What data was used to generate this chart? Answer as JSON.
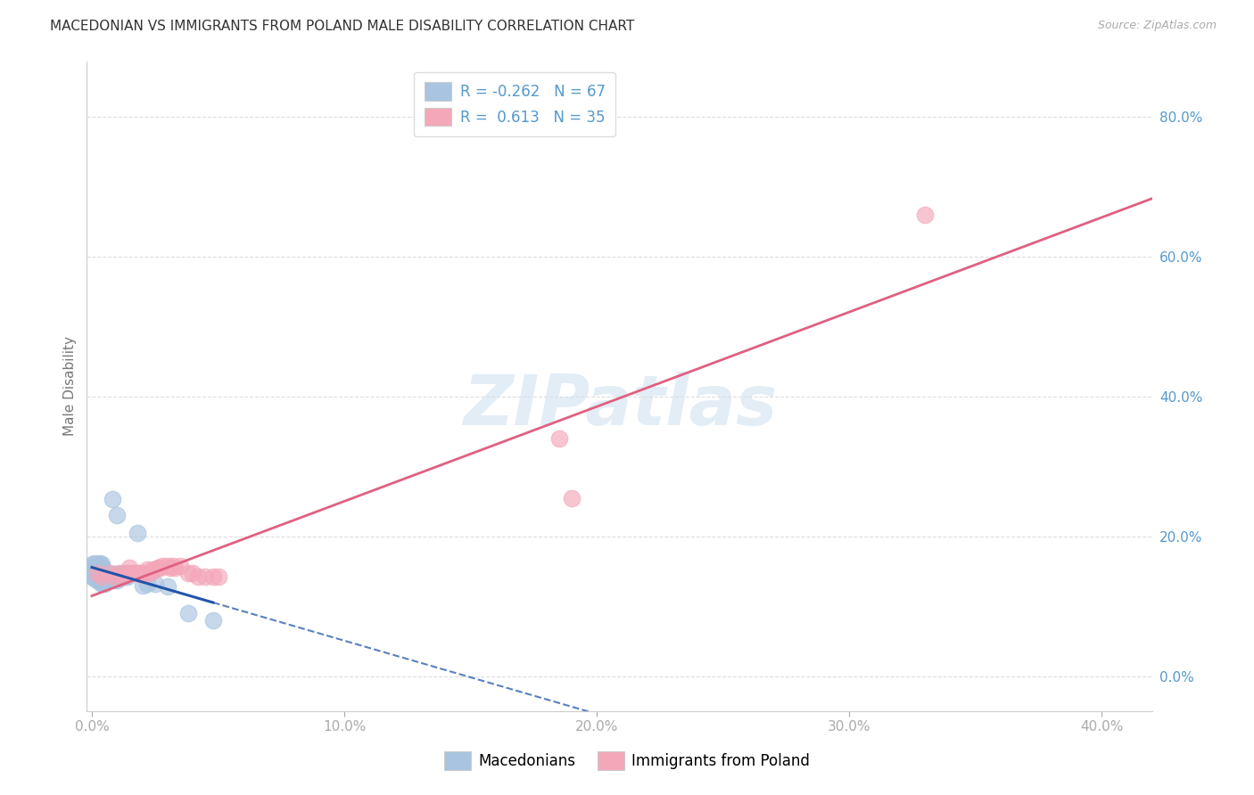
{
  "title": "MACEDONIAN VS IMMIGRANTS FROM POLAND MALE DISABILITY CORRELATION CHART",
  "source": "Source: ZipAtlas.com",
  "ylabel": "Male Disability",
  "xlim": [
    -0.002,
    0.42
  ],
  "ylim": [
    -0.05,
    0.88
  ],
  "ytick_labels": [
    "0.0%",
    "20.0%",
    "40.0%",
    "60.0%",
    "80.0%"
  ],
  "ytick_values": [
    0.0,
    0.2,
    0.4,
    0.6,
    0.8
  ],
  "xtick_labels": [
    "0.0%",
    "10.0%",
    "20.0%",
    "30.0%",
    "40.0%"
  ],
  "xtick_values": [
    0.0,
    0.1,
    0.2,
    0.3,
    0.4
  ],
  "blue_color": "#a8c4e0",
  "pink_color": "#f4a7b9",
  "blue_line_color": "#2255aa",
  "pink_line_color": "#e06080",
  "R_blue": -0.262,
  "N_blue": 67,
  "R_pink": 0.613,
  "N_pink": 35,
  "blue_scatter": [
    [
      0.0,
      0.155
    ],
    [
      0.001,
      0.155
    ],
    [
      0.001,
      0.152
    ],
    [
      0.002,
      0.15
    ],
    [
      0.002,
      0.148
    ],
    [
      0.002,
      0.155
    ],
    [
      0.003,
      0.148
    ],
    [
      0.003,
      0.145
    ],
    [
      0.004,
      0.148
    ],
    [
      0.004,
      0.15
    ],
    [
      0.005,
      0.145
    ],
    [
      0.005,
      0.148
    ],
    [
      0.006,
      0.145
    ],
    [
      0.006,
      0.148
    ],
    [
      0.007,
      0.143
    ],
    [
      0.007,
      0.146
    ],
    [
      0.008,
      0.143
    ],
    [
      0.008,
      0.146
    ],
    [
      0.009,
      0.143
    ],
    [
      0.009,
      0.146
    ],
    [
      0.01,
      0.143
    ],
    [
      0.01,
      0.146
    ],
    [
      0.011,
      0.143
    ],
    [
      0.011,
      0.146
    ],
    [
      0.012,
      0.143
    ],
    [
      0.012,
      0.146
    ],
    [
      0.013,
      0.143
    ],
    [
      0.013,
      0.148
    ],
    [
      0.014,
      0.143
    ],
    [
      0.014,
      0.148
    ],
    [
      0.0,
      0.16
    ],
    [
      0.001,
      0.158
    ],
    [
      0.001,
      0.162
    ],
    [
      0.002,
      0.158
    ],
    [
      0.002,
      0.16
    ],
    [
      0.003,
      0.158
    ],
    [
      0.003,
      0.162
    ],
    [
      0.004,
      0.158
    ],
    [
      0.004,
      0.16
    ],
    [
      0.0,
      0.152
    ],
    [
      0.001,
      0.148
    ],
    [
      0.001,
      0.145
    ],
    [
      0.002,
      0.143
    ],
    [
      0.003,
      0.14
    ],
    [
      0.004,
      0.138
    ],
    [
      0.005,
      0.14
    ],
    [
      0.006,
      0.138
    ],
    [
      0.007,
      0.138
    ],
    [
      0.008,
      0.138
    ],
    [
      0.009,
      0.14
    ],
    [
      0.01,
      0.138
    ],
    [
      0.011,
      0.14
    ],
    [
      0.0,
      0.143
    ],
    [
      0.001,
      0.14
    ],
    [
      0.002,
      0.138
    ],
    [
      0.003,
      0.135
    ],
    [
      0.004,
      0.133
    ],
    [
      0.005,
      0.133
    ],
    [
      0.02,
      0.13
    ],
    [
      0.022,
      0.133
    ],
    [
      0.025,
      0.133
    ],
    [
      0.03,
      0.128
    ],
    [
      0.008,
      0.253
    ],
    [
      0.018,
      0.205
    ],
    [
      0.01,
      0.23
    ],
    [
      0.048,
      0.08
    ],
    [
      0.038,
      0.09
    ]
  ],
  "pink_scatter": [
    [
      0.002,
      0.148
    ],
    [
      0.004,
      0.143
    ],
    [
      0.007,
      0.148
    ],
    [
      0.009,
      0.143
    ],
    [
      0.011,
      0.148
    ],
    [
      0.012,
      0.143
    ],
    [
      0.014,
      0.148
    ],
    [
      0.015,
      0.155
    ],
    [
      0.016,
      0.148
    ],
    [
      0.017,
      0.148
    ],
    [
      0.018,
      0.148
    ],
    [
      0.019,
      0.148
    ],
    [
      0.02,
      0.145
    ],
    [
      0.021,
      0.148
    ],
    [
      0.022,
      0.153
    ],
    [
      0.023,
      0.148
    ],
    [
      0.024,
      0.153
    ],
    [
      0.025,
      0.153
    ],
    [
      0.026,
      0.155
    ],
    [
      0.027,
      0.155
    ],
    [
      0.028,
      0.158
    ],
    [
      0.03,
      0.158
    ],
    [
      0.031,
      0.155
    ],
    [
      0.032,
      0.158
    ],
    [
      0.033,
      0.155
    ],
    [
      0.035,
      0.158
    ],
    [
      0.038,
      0.148
    ],
    [
      0.04,
      0.148
    ],
    [
      0.042,
      0.143
    ],
    [
      0.045,
      0.143
    ],
    [
      0.048,
      0.143
    ],
    [
      0.05,
      0.143
    ],
    [
      0.19,
      0.255
    ],
    [
      0.185,
      0.34
    ],
    [
      0.33,
      0.66
    ]
  ],
  "background_color": "#ffffff",
  "grid_color": "#dddddd",
  "title_fontsize": 11,
  "tick_label_color": "#5599cc",
  "watermark_color": "#ccdff0"
}
